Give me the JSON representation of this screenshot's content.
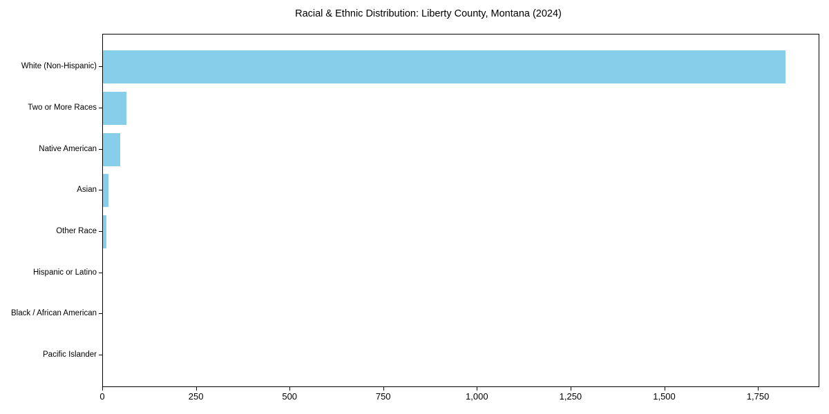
{
  "page": {
    "background": "#ffffff"
  },
  "chart_data": {
    "type": "bar",
    "orientation": "horizontal",
    "title": "Racial & Ethnic Distribution: Liberty County, Montana (2024)",
    "categories": [
      "White (Non-Hispanic)",
      "Two or More Races",
      "Native American",
      "Asian",
      "Other Race",
      "Hispanic or Latino",
      "Black / African American",
      "Pacific Islander"
    ],
    "values": [
      1822,
      63,
      46,
      15,
      10,
      0,
      0,
      0
    ],
    "bar_color": "#87CEEB",
    "text_color": "#000000",
    "spine_color": "#000000",
    "xlabel": "",
    "ylabel": "",
    "xlim": [
      0,
      1914
    ],
    "x_ticks": [
      0,
      250,
      500,
      750,
      1000,
      1250,
      1500,
      1750
    ],
    "x_tick_labels": [
      "0",
      "250",
      "500",
      "750",
      "1,000",
      "1,250",
      "1,500",
      "1,750"
    ],
    "grid": false,
    "legend": false,
    "frame": "full-box",
    "bar_height_fraction": 0.8
  }
}
